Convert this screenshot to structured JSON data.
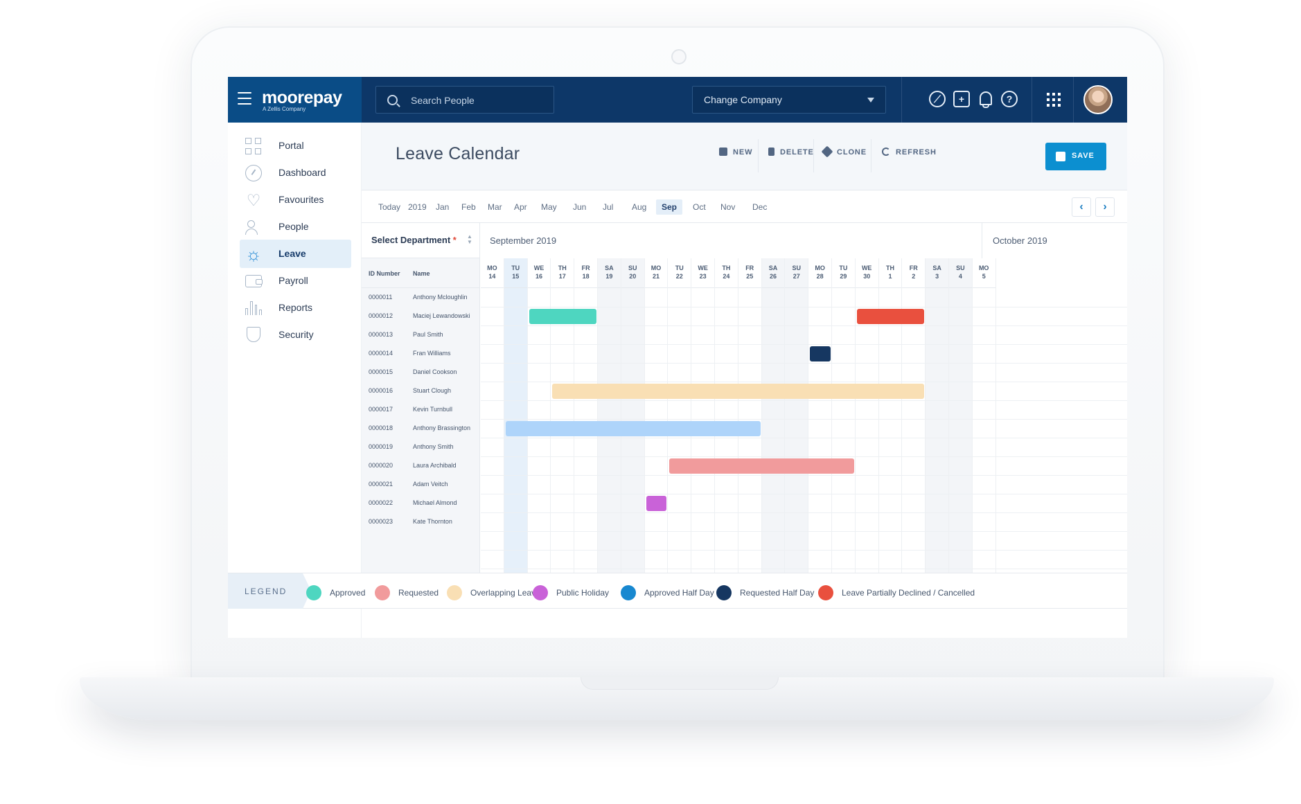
{
  "app": {
    "logo": "moorepay",
    "logo_sub": "A Zellis Company",
    "search_placeholder": "Search People",
    "company_select": "Change Company"
  },
  "topbar_icons": [
    "menu-icon",
    "compass-icon",
    "add-square-icon",
    "bell-icon",
    "help-icon",
    "apps-grid-icon",
    "user-avatar"
  ],
  "sidebar": {
    "items": [
      {
        "label": "Portal",
        "icon": "portal-grid-icon",
        "active": false
      },
      {
        "label": "Dashboard",
        "icon": "dashboard-icon",
        "active": false
      },
      {
        "label": "Favourites",
        "icon": "heart-icon",
        "active": false
      },
      {
        "label": "People",
        "icon": "people-icon",
        "active": false
      },
      {
        "label": "Leave",
        "icon": "sun-icon",
        "active": true
      },
      {
        "label": "Payroll",
        "icon": "wallet-icon",
        "active": false
      },
      {
        "label": "Reports",
        "icon": "bar-chart-icon",
        "active": false
      },
      {
        "label": "Security",
        "icon": "shield-icon",
        "active": false
      }
    ]
  },
  "header": {
    "title": "Leave Calendar",
    "actions": {
      "new": "NEW",
      "delete": "DELETE",
      "clone": "CLONE",
      "refresh": "REFRESH",
      "save": "SAVE"
    }
  },
  "periods": [
    "Today",
    "2019",
    "Jan",
    "Feb",
    "Mar",
    "Apr",
    "May",
    "Jun",
    "Jul",
    "Aug",
    "Sep",
    "Oct",
    "Nov",
    "Dec"
  ],
  "active_period": "Sep",
  "department": {
    "label": "Select Department",
    "required_mark": "*"
  },
  "calendar": {
    "months": [
      "September 2019",
      "October 2019"
    ],
    "columns": {
      "id": "ID Number",
      "name": "Name"
    },
    "days": [
      {
        "dow": "MO",
        "num": "14"
      },
      {
        "dow": "TU",
        "num": "15"
      },
      {
        "dow": "WE",
        "num": "16"
      },
      {
        "dow": "TH",
        "num": "17"
      },
      {
        "dow": "FR",
        "num": "18"
      },
      {
        "dow": "SA",
        "num": "19"
      },
      {
        "dow": "SU",
        "num": "20"
      },
      {
        "dow": "MO",
        "num": "21"
      },
      {
        "dow": "TU",
        "num": "22"
      },
      {
        "dow": "WE",
        "num": "23"
      },
      {
        "dow": "TH",
        "num": "24"
      },
      {
        "dow": "FR",
        "num": "25"
      },
      {
        "dow": "SA",
        "num": "26"
      },
      {
        "dow": "SU",
        "num": "27"
      },
      {
        "dow": "MO",
        "num": "28"
      },
      {
        "dow": "TU",
        "num": "29"
      },
      {
        "dow": "WE",
        "num": "30"
      },
      {
        "dow": "TH",
        "num": "1"
      },
      {
        "dow": "FR",
        "num": "2"
      },
      {
        "dow": "SA",
        "num": "3"
      },
      {
        "dow": "SU",
        "num": "4"
      },
      {
        "dow": "MO",
        "num": "5"
      }
    ],
    "today": "TU 15",
    "employees": [
      {
        "id": "0000011",
        "name": "Anthony Mcloughlin"
      },
      {
        "id": "0000012",
        "name": "Maciej Lewandowski"
      },
      {
        "id": "0000013",
        "name": "Paul Smith"
      },
      {
        "id": "0000014",
        "name": "Fran Williams"
      },
      {
        "id": "0000015",
        "name": "Daniel Cookson"
      },
      {
        "id": "0000016",
        "name": "Stuart Clough"
      },
      {
        "id": "0000017",
        "name": "Kevin Turnbull"
      },
      {
        "id": "0000018",
        "name": "Anthony Brassington"
      },
      {
        "id": "0000019",
        "name": "Anthony Smith"
      },
      {
        "id": "0000020",
        "name": "Laura Archibald"
      },
      {
        "id": "0000021",
        "name": "Adam Veitch"
      },
      {
        "id": "0000022",
        "name": "Michael Almond"
      },
      {
        "id": "0000023",
        "name": "Kate Thornton"
      }
    ],
    "leave_entries": [
      {
        "employee": "0000012",
        "start_day": "16",
        "end_day": "18",
        "type": "Approved"
      },
      {
        "employee": "0000012",
        "start_day": "30",
        "end_day": "2",
        "type": "Leave Partially Declined / Cancelled"
      },
      {
        "employee": "0000014",
        "start_day": "28",
        "end_day": "28",
        "type": "Requested Half Day"
      },
      {
        "employee": "0000016",
        "start_day": "17",
        "end_day": "2",
        "type": "Overlapping Leave"
      },
      {
        "employee": "0000018",
        "start_day": "15",
        "end_day": "25",
        "type": "Approved Half Day (light)"
      },
      {
        "employee": "0000020",
        "start_day": "22",
        "end_day": "29",
        "type": "Requested"
      },
      {
        "employee": "0000022",
        "start_day": "21",
        "end_day": "21",
        "type": "Public Holiday"
      }
    ]
  },
  "legend": {
    "title": "LEGEND",
    "items": [
      {
        "label": "Approved",
        "color": "#4ed6c0"
      },
      {
        "label": "Requested",
        "color": "#f19b9c"
      },
      {
        "label": "Overlapping Leave",
        "color": "#f9dfb4"
      },
      {
        "label": "Public Holiday",
        "color": "#c962d8"
      },
      {
        "label": "Approved Half Day",
        "color": "#1888d0"
      },
      {
        "label": "Requested Half Day",
        "color": "#163761"
      },
      {
        "label": "Leave Partially Declined / Cancelled",
        "color": "#e9503e"
      }
    ]
  },
  "colors": {
    "topbar": "#0d3768",
    "brand": "#0a4c86",
    "accent": "#0c8fd0",
    "approved_half_day_light": "#aed4fa"
  }
}
